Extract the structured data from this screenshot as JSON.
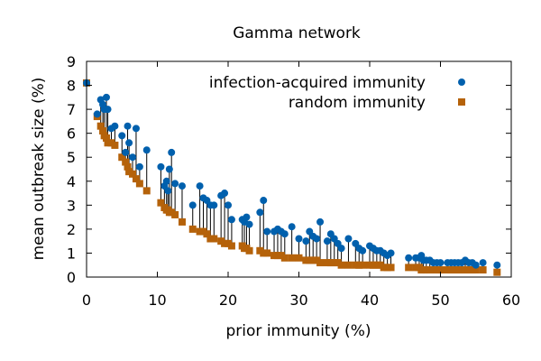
{
  "chart_data": {
    "type": "scatter",
    "title": "Gamma network",
    "xlabel": "prior immunity (%)",
    "ylabel": "mean outbreak size (%)",
    "xlim": [
      0,
      60
    ],
    "ylim": [
      0,
      9
    ],
    "xticks": [
      "0",
      "10",
      "20",
      "30",
      "40",
      "50",
      "60"
    ],
    "yticks": [
      "0",
      "1",
      "2",
      "3",
      "4",
      "5",
      "6",
      "7",
      "8",
      "9"
    ],
    "grid": false,
    "legend_position": "top-right",
    "colors": {
      "infection": "#0060ad",
      "random": "#b5620a",
      "stem": "#000000"
    },
    "x": [
      0,
      1.5,
      2,
      2.3,
      2.5,
      2.8,
      3,
      3.5,
      4,
      5,
      5.5,
      5.8,
      6,
      6.5,
      7,
      7.5,
      8.5,
      10.5,
      11,
      11.3,
      11.5,
      11.7,
      12,
      12.5,
      13.5,
      15,
      16,
      16.5,
      17,
      17.5,
      18,
      19,
      19.5,
      20,
      20.5,
      22,
      22.3,
      22.6,
      23,
      24.5,
      25,
      25.5,
      26.5,
      27,
      27.5,
      28,
      29,
      30,
      31,
      31.5,
      32,
      32.5,
      33,
      34,
      34.5,
      35,
      35.5,
      36,
      37,
      38,
      38.5,
      39,
      40,
      40.5,
      41,
      41.5,
      42,
      42.5,
      43,
      45.5,
      46.5,
      47,
      47.3,
      47.6,
      48,
      48.5,
      49,
      49.5,
      50,
      51,
      51.5,
      52,
      52.5,
      53,
      53.5,
      54,
      54.5,
      55,
      56,
      58
    ],
    "series": [
      {
        "name": "infection-acquired immunity",
        "marker": "circle",
        "values": [
          8.1,
          6.8,
          7.4,
          7.2,
          7.0,
          7.5,
          7.0,
          6.2,
          6.3,
          5.9,
          5.2,
          6.3,
          5.6,
          5.0,
          6.2,
          4.6,
          5.3,
          4.6,
          3.8,
          4.0,
          3.6,
          4.5,
          5.2,
          3.9,
          3.8,
          3.0,
          3.8,
          3.3,
          3.2,
          3.0,
          3.0,
          3.4,
          3.5,
          3.0,
          2.4,
          2.4,
          2.3,
          2.5,
          2.2,
          2.7,
          3.2,
          1.9,
          1.9,
          2.0,
          1.9,
          1.8,
          2.1,
          1.6,
          1.5,
          1.9,
          1.7,
          1.6,
          2.3,
          1.5,
          1.8,
          1.6,
          1.4,
          1.2,
          1.6,
          1.4,
          1.2,
          1.1,
          1.3,
          1.2,
          1.1,
          1.1,
          1.0,
          0.9,
          1.0,
          0.8,
          0.8,
          0.8,
          0.9,
          0.7,
          0.7,
          0.7,
          0.6,
          0.6,
          0.6,
          0.6,
          0.6,
          0.6,
          0.6,
          0.6,
          0.7,
          0.6,
          0.6,
          0.5,
          0.6,
          0.5
        ]
      },
      {
        "name": "random immunity",
        "marker": "square",
        "values": [
          8.1,
          6.7,
          6.3,
          6.1,
          5.9,
          5.8,
          5.6,
          5.6,
          5.5,
          5.0,
          4.8,
          4.6,
          4.4,
          4.3,
          4.1,
          3.9,
          3.6,
          3.1,
          2.9,
          2.8,
          2.8,
          2.7,
          2.7,
          2.6,
          2.3,
          2.0,
          1.9,
          1.9,
          1.8,
          1.6,
          1.6,
          1.5,
          1.4,
          1.4,
          1.3,
          1.3,
          1.2,
          1.2,
          1.1,
          1.1,
          1.0,
          1.0,
          0.9,
          0.9,
          0.9,
          0.8,
          0.8,
          0.8,
          0.7,
          0.7,
          0.7,
          0.7,
          0.6,
          0.6,
          0.6,
          0.6,
          0.6,
          0.5,
          0.5,
          0.5,
          0.5,
          0.5,
          0.5,
          0.5,
          0.5,
          0.5,
          0.4,
          0.4,
          0.4,
          0.4,
          0.4,
          0.4,
          0.3,
          0.3,
          0.3,
          0.3,
          0.3,
          0.3,
          0.3,
          0.3,
          0.3,
          0.3,
          0.3,
          0.3,
          0.3,
          0.3,
          0.3,
          0.3,
          0.3,
          0.2
        ]
      }
    ]
  }
}
